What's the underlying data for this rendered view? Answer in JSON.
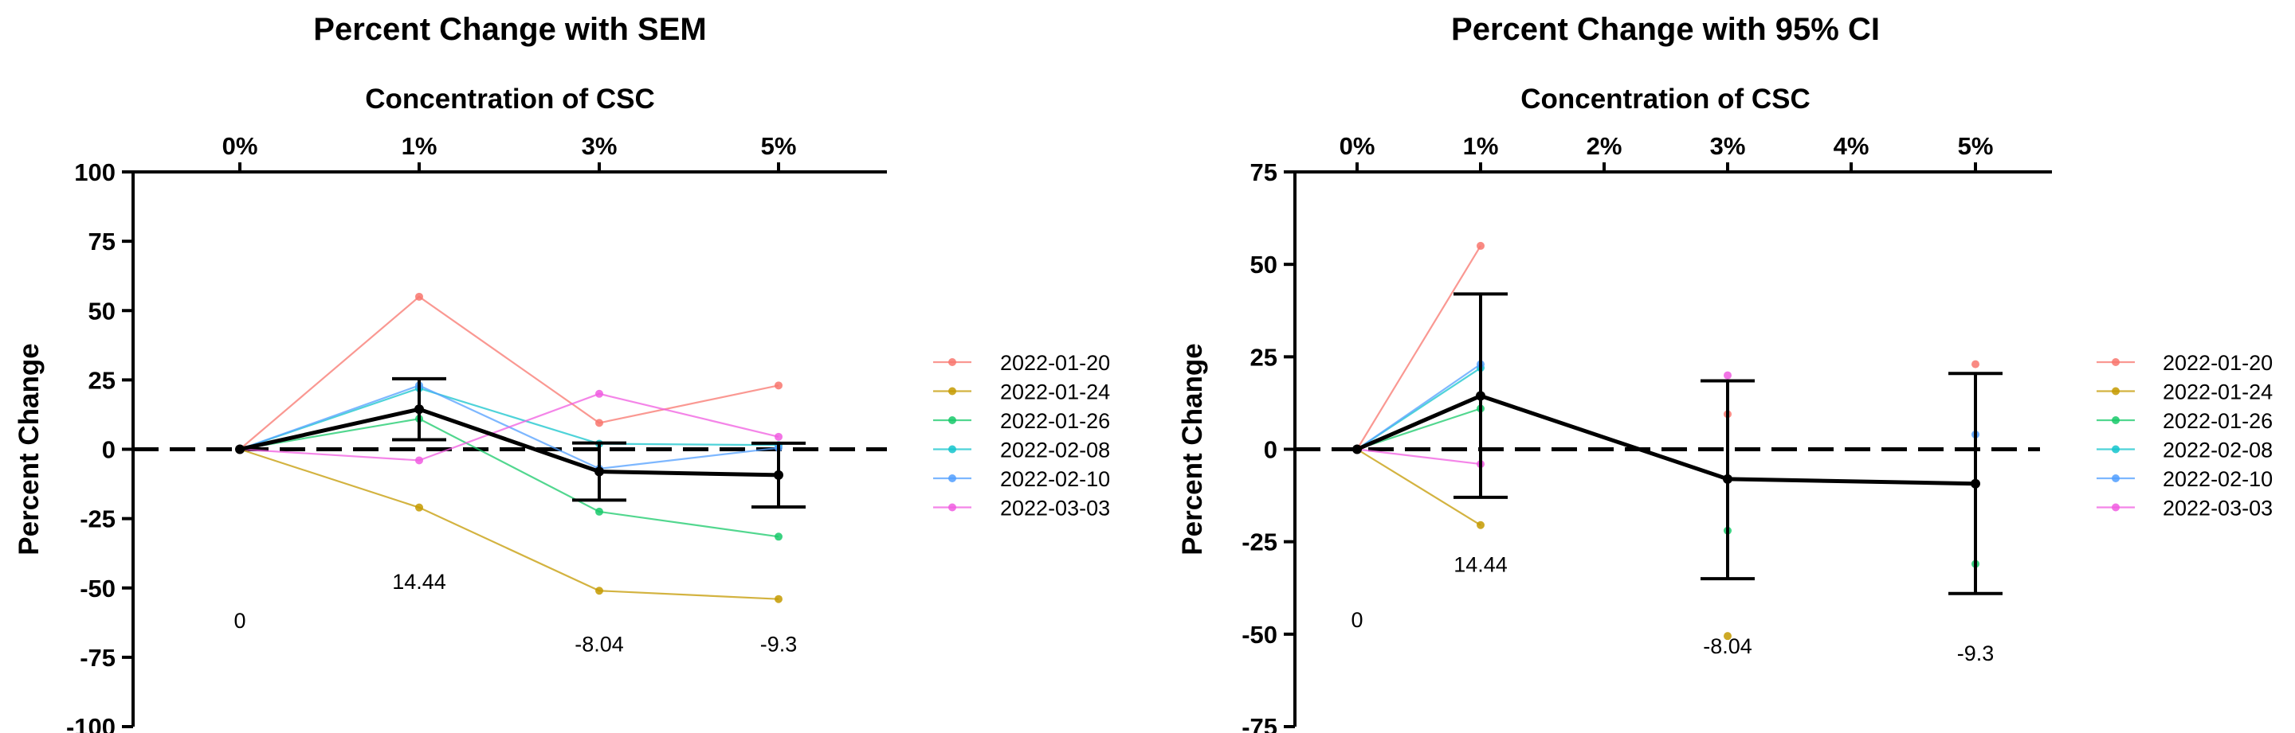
{
  "colors": {
    "2022-01-20": "#F8766D",
    "2022-01-24": "#C49A00",
    "2022-01-26": "#18C96A",
    "2022-02-08": "#14C4CC",
    "2022-02-10": "#519FFF",
    "2022-03-03": "#F05CE0",
    "mean": "#000000"
  },
  "chart_data": [
    {
      "type": "line",
      "title": "Percent Change with SEM",
      "xlabel": "Concentration of CSC",
      "ylabel": "Percent Change",
      "x_axis_position": "top",
      "x_tick_labels": [
        "0%",
        "1%",
        "3%",
        "5%"
      ],
      "ylim": [
        -100,
        100
      ],
      "y_ticks": [
        100,
        75,
        50,
        25,
        0,
        -25,
        -50,
        -75,
        -100
      ],
      "reference_line": 0,
      "error_type": "SEM",
      "legend_position": "right",
      "series": [
        {
          "name": "2022-01-20",
          "values": [
            0,
            55,
            9.5,
            23
          ]
        },
        {
          "name": "2022-01-24",
          "values": [
            0,
            -21,
            -51,
            -54
          ]
        },
        {
          "name": "2022-01-26",
          "values": [
            0,
            11,
            -22.5,
            -31.5
          ]
        },
        {
          "name": "2022-02-08",
          "values": [
            0,
            22,
            2,
            1.5
          ]
        },
        {
          "name": "2022-02-10",
          "values": [
            0,
            23,
            -7,
            0.5
          ]
        },
        {
          "name": "2022-03-03",
          "values": [
            0,
            -4,
            20,
            4.5
          ]
        }
      ],
      "mean": {
        "values": [
          0,
          14.44,
          -8.04,
          -9.3
        ],
        "error": [
          0,
          11,
          10.3,
          11.5
        ]
      },
      "mean_labels": [
        "0",
        "14.44",
        "-8.04",
        "-9.3"
      ],
      "mean_label_y": [
        -61.5,
        -47.5,
        -70,
        -70
      ]
    },
    {
      "type": "line",
      "title": "Percent Change with 95% CI",
      "xlabel": "Concentration of CSC",
      "ylabel": "Percent Change",
      "x_axis_position": "top",
      "x_tick_labels": [
        "0%",
        "1%",
        "2%",
        "3%",
        "4%",
        "5%"
      ],
      "x_tick_values": [
        0,
        1,
        2,
        3,
        4,
        5
      ],
      "ylim": [
        -75,
        75
      ],
      "y_ticks": [
        75,
        50,
        25,
        0,
        -25,
        -50,
        -75
      ],
      "reference_line": 0,
      "error_type": "95% CI",
      "legend_position": "right",
      "series": [
        {
          "name": "2022-01-20",
          "values": [
            0,
            55
          ]
        },
        {
          "name": "2022-01-24",
          "values": [
            0,
            -20.5
          ]
        },
        {
          "name": "2022-01-26",
          "values": [
            0,
            11
          ]
        },
        {
          "name": "2022-02-08",
          "values": [
            0,
            22
          ]
        },
        {
          "name": "2022-02-10",
          "values": [
            0,
            23
          ]
        },
        {
          "name": "2022-03-03",
          "values": [
            0,
            -4
          ]
        }
      ],
      "scatter_points": [
        {
          "series": "2022-01-20",
          "x": 3,
          "y": 9.5
        },
        {
          "series": "2022-01-24",
          "x": 3,
          "y": -50.5
        },
        {
          "series": "2022-01-26",
          "x": 3,
          "y": -22
        },
        {
          "series": "2022-03-03",
          "x": 3,
          "y": 20
        },
        {
          "series": "2022-01-20",
          "x": 5,
          "y": 23
        },
        {
          "series": "2022-01-26",
          "x": 5,
          "y": -31
        },
        {
          "series": "2022-02-10",
          "x": 5,
          "y": 4
        }
      ],
      "mean": {
        "x": [
          0,
          1,
          3,
          5
        ],
        "values": [
          0,
          14.44,
          -8.04,
          -9.3
        ],
        "lower": [
          0,
          -13,
          -35,
          -39
        ],
        "upper": [
          0,
          42,
          18.5,
          20.5
        ]
      },
      "mean_labels": [
        "0",
        "14.44",
        "-8.04",
        "-9.3"
      ],
      "mean_label_y": [
        -46,
        -31,
        -53,
        -55
      ]
    }
  ],
  "legend": [
    "2022-01-20",
    "2022-01-24",
    "2022-01-26",
    "2022-02-08",
    "2022-02-10",
    "2022-03-03"
  ]
}
